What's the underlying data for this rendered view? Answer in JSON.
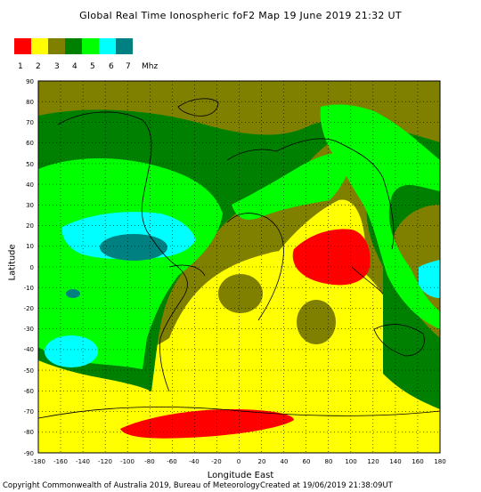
{
  "title": "Global Real Time Ionospheric foF2 Map   19 June 2019 21:32 UT",
  "legend": {
    "colors": [
      "#ff0000",
      "#ffff00",
      "#808000",
      "#008000",
      "#00ff00",
      "#00ffff",
      "#008080"
    ],
    "labels": [
      "1",
      "2",
      "3",
      "4",
      "5",
      "6",
      "7"
    ],
    "unit": "Mhz"
  },
  "axes": {
    "x_ticks": [
      "-180",
      "-160",
      "-140",
      "-120",
      "-100",
      "-80",
      "-60",
      "-40",
      "-20",
      "0",
      "20",
      "40",
      "60",
      "80",
      "100",
      "120",
      "140",
      "160",
      "180"
    ],
    "y_ticks": [
      "90",
      "80",
      "70",
      "60",
      "50",
      "40",
      "30",
      "20",
      "10",
      "0",
      "-10",
      "-20",
      "-30",
      "-40",
      "-50",
      "-60",
      "-70",
      "-80",
      "-90"
    ],
    "xlabel": "Longitude East",
    "ylabel": "Latitude",
    "xlim": [
      -180,
      180
    ],
    "ylim": [
      -90,
      90
    ],
    "grid": "dotted"
  },
  "footer": {
    "left": "Copyright Commonwealth of Australia 2019, Bureau of Meteorology",
    "right": "Created at 19/06/2019 21:38:09UT"
  }
}
